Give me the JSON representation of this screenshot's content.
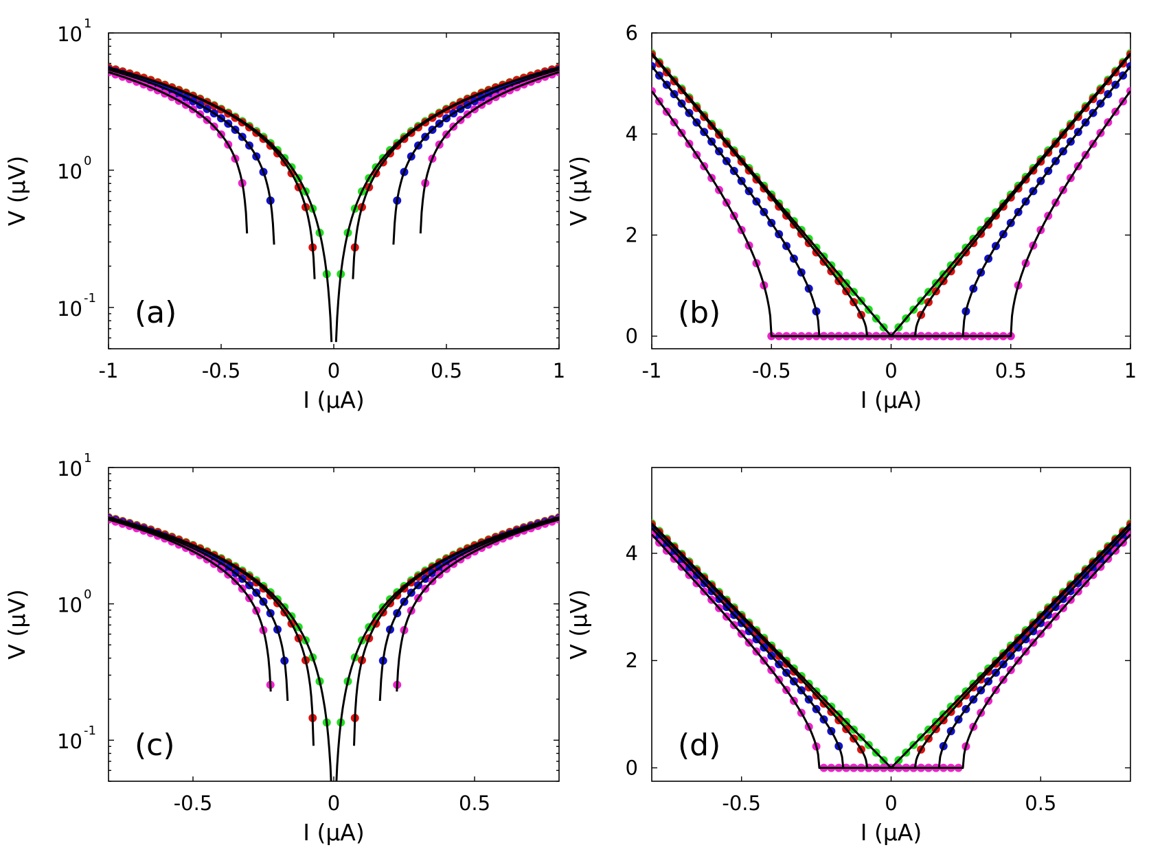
{
  "figure": {
    "panels": [
      {
        "id": "a",
        "label": "(a)"
      },
      {
        "id": "b",
        "label": "(b)"
      },
      {
        "id": "c",
        "label": "(c)"
      },
      {
        "id": "d",
        "label": "(d)"
      }
    ]
  },
  "chart_data": [
    {
      "panel": "(a)",
      "type": "scatter",
      "title": "",
      "xlabel": "I (µA)",
      "ylabel": "V (µV)",
      "yscale": "log",
      "xlim": [
        -1,
        1
      ],
      "ylim": [
        0.05,
        10
      ],
      "xticks": [
        -1,
        -0.5,
        0,
        0.5,
        1
      ],
      "xtick_labels": [
        "-1",
        "-0.5",
        "0",
        "0.5",
        "1"
      ],
      "yticks": [
        {
          "value": 10,
          "base": "10",
          "exp": "1"
        },
        {
          "value": 1,
          "base": "10",
          "exp": "0"
        },
        {
          "value": 0.1,
          "base": "10",
          "exp": "-1"
        }
      ],
      "model": "log",
      "Rn": 5.6,
      "Ic": [
        0,
        0.08,
        0.26,
        0.38
      ],
      "fit_Ic": [
        0,
        0.08,
        0.26,
        0.38
      ],
      "series_colors": [
        "#22dd22",
        "#dd1111",
        "#1111cc",
        "#ee22cc"
      ],
      "series": [
        {
          "name": "green",
          "color": "#22dd22",
          "Ic": 0
        },
        {
          "name": "red",
          "color": "#dd1111",
          "Ic": 0.08
        },
        {
          "name": "blue",
          "color": "#1111cc",
          "Ic": 0.26
        },
        {
          "name": "magenta",
          "color": "#ee22cc",
          "Ic": 0.38
        }
      ],
      "fit_color": "#000000"
    },
    {
      "panel": "(b)",
      "type": "scatter",
      "title": "",
      "xlabel": "I (µA)",
      "ylabel": "V (µV)",
      "yscale": "linear",
      "xlim": [
        -1,
        1
      ],
      "ylim": [
        -0.25,
        6
      ],
      "xticks": [
        -1,
        -0.5,
        0,
        0.5,
        1
      ],
      "xtick_labels": [
        "-1",
        "-0.5",
        "0",
        "0.5",
        "1"
      ],
      "yticks": [
        {
          "value": 0,
          "label": "0"
        },
        {
          "value": 2,
          "label": "2"
        },
        {
          "value": 4,
          "label": "4"
        },
        {
          "value": 6,
          "label": "6"
        }
      ],
      "model": "linear",
      "Rn": 5.6,
      "Ic": [
        0,
        0.1,
        0.3,
        0.5
      ],
      "fit_Ic": [
        0,
        0.1,
        0.3,
        0.5
      ],
      "series_colors": [
        "#22dd22",
        "#dd1111",
        "#1111cc",
        "#ee22cc"
      ],
      "series": [
        {
          "name": "green",
          "color": "#22dd22",
          "Ic": 0
        },
        {
          "name": "red",
          "color": "#dd1111",
          "Ic": 0.1
        },
        {
          "name": "blue",
          "color": "#1111cc",
          "Ic": 0.3
        },
        {
          "name": "magenta",
          "color": "#ee22cc",
          "Ic": 0.5
        }
      ],
      "fit_color": "#000000"
    },
    {
      "panel": "(c)",
      "type": "scatter",
      "title": "",
      "xlabel": "I (µA)",
      "ylabel": "V (µV)",
      "yscale": "log",
      "xlim": [
        -0.8,
        0.8
      ],
      "ylim": [
        0.05,
        10
      ],
      "xticks": [
        -0.5,
        0,
        0.5
      ],
      "xtick_labels": [
        "-0.5",
        "0",
        "0.5"
      ],
      "yticks": [
        {
          "value": 10,
          "base": "10",
          "exp": "1"
        },
        {
          "value": 1,
          "base": "10",
          "exp": "0"
        },
        {
          "value": 0.1,
          "base": "10",
          "exp": "-1"
        }
      ],
      "model": "log",
      "Rn": 5.4,
      "Ic": [
        0,
        0.07,
        0.16,
        0.22
      ],
      "fit_Ic": [
        0,
        0.07,
        0.16,
        0.22
      ],
      "series_colors": [
        "#22dd22",
        "#dd1111",
        "#1111cc",
        "#ee22cc"
      ],
      "series": [
        {
          "name": "green",
          "color": "#22dd22",
          "Ic": 0
        },
        {
          "name": "red",
          "color": "#dd1111",
          "Ic": 0.07
        },
        {
          "name": "blue",
          "color": "#1111cc",
          "Ic": 0.16
        },
        {
          "name": "magenta",
          "color": "#ee22cc",
          "Ic": 0.22
        }
      ],
      "fit_color": "#000000"
    },
    {
      "panel": "(d)",
      "type": "scatter",
      "title": "",
      "xlabel": "I (µA)",
      "ylabel": "V (µV)",
      "yscale": "linear",
      "xlim": [
        -0.8,
        0.8
      ],
      "ylim": [
        -0.25,
        5.6
      ],
      "xticks": [
        -0.5,
        0,
        0.5
      ],
      "xtick_labels": [
        "-0.5",
        "0",
        "0.5"
      ],
      "yticks": [
        {
          "value": 0,
          "label": "0"
        },
        {
          "value": 2,
          "label": "2"
        },
        {
          "value": 4,
          "label": "4"
        }
      ],
      "model": "linear",
      "Rn": 5.7,
      "Ic": [
        0,
        0.08,
        0.16,
        0.24
      ],
      "fit_Ic": [
        0,
        0.08,
        0.16,
        0.24
      ],
      "series_colors": [
        "#22dd22",
        "#dd1111",
        "#1111cc",
        "#ee22cc"
      ],
      "series": [
        {
          "name": "green",
          "color": "#22dd22",
          "Ic": 0
        },
        {
          "name": "red",
          "color": "#dd1111",
          "Ic": 0.08
        },
        {
          "name": "blue",
          "color": "#1111cc",
          "Ic": 0.16
        },
        {
          "name": "magenta",
          "color": "#ee22cc",
          "Ic": 0.24
        }
      ],
      "fit_color": "#000000"
    }
  ]
}
